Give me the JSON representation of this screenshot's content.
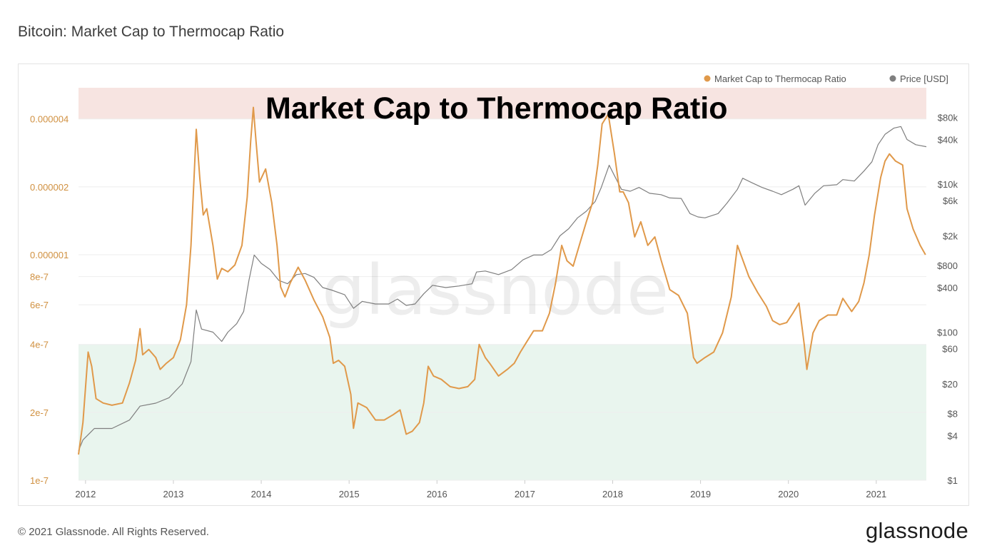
{
  "page_title": "Bitcoin: Market Cap to Thermocap Ratio",
  "overlay_title": "Market Cap to Thermocap Ratio",
  "watermark": "glassnode",
  "footer": {
    "copyright": "© 2021 Glassnode. All Rights Reserved.",
    "logo": "glassnode"
  },
  "colors": {
    "ratio": "#e0994a",
    "price": "#7f7f7f",
    "red_band": "#f7e4e1",
    "green_band": "#e9f5ee",
    "axis_left": "#d09040",
    "axis_right": "#555555"
  },
  "chart_data": {
    "type": "line",
    "title": "Market Cap to Thermocap Ratio",
    "legend": {
      "placement": "top-right",
      "entries": [
        "Market Cap to Thermocap Ratio",
        "Price [USD]"
      ]
    },
    "x_ticks": [
      "2012",
      "2013",
      "2014",
      "2015",
      "2016",
      "2017",
      "2018",
      "2019",
      "2020",
      "2021"
    ],
    "x_range": [
      2011.92,
      2021.57
    ],
    "y_left": {
      "scale": "log",
      "range": [
        1e-07,
        5.5e-06
      ],
      "ticks": [
        {
          "value": 4e-06,
          "label": "0.000004"
        },
        {
          "value": 2e-06,
          "label": "0.000002"
        },
        {
          "value": 1e-06,
          "label": "0.000001"
        },
        {
          "value": 8e-07,
          "label": "8e-7"
        },
        {
          "value": 6e-07,
          "label": "6e-7"
        },
        {
          "value": 4e-07,
          "label": "4e-7"
        },
        {
          "value": 2e-07,
          "label": "2e-7"
        },
        {
          "value": 1e-07,
          "label": "1e-7"
        }
      ]
    },
    "y_right": {
      "scale": "log",
      "range": [
        1,
        200000
      ],
      "ticks": [
        {
          "value": 80000,
          "label": "$80k"
        },
        {
          "value": 40000,
          "label": "$40k"
        },
        {
          "value": 10000,
          "label": "$10k"
        },
        {
          "value": 6000,
          "label": "$6k"
        },
        {
          "value": 2000,
          "label": "$2k"
        },
        {
          "value": 800,
          "label": "$800"
        },
        {
          "value": 400,
          "label": "$400"
        },
        {
          "value": 100,
          "label": "$100"
        },
        {
          "value": 60,
          "label": "$60"
        },
        {
          "value": 20,
          "label": "$20"
        },
        {
          "value": 8,
          "label": "$8"
        },
        {
          "value": 4,
          "label": "$4"
        },
        {
          "value": 1,
          "label": "$1"
        }
      ]
    },
    "bands": [
      {
        "name": "",
        "from": 4e-06,
        "to": 5.5e-06
      },
      {
        "name": "",
        "from": 1e-07,
        "to": 4e-07
      }
    ],
    "series": [
      {
        "name": "Market Cap to Thermocap Ratio",
        "axis": "left",
        "points": [
          [
            2011.92,
            1.3e-07
          ],
          [
            2011.97,
            1.8e-07
          ],
          [
            2012.03,
            3.7e-07
          ],
          [
            2012.07,
            3.2e-07
          ],
          [
            2012.12,
            2.3e-07
          ],
          [
            2012.2,
            2.2e-07
          ],
          [
            2012.3,
            2.15e-07
          ],
          [
            2012.42,
            2.2e-07
          ],
          [
            2012.5,
            2.7e-07
          ],
          [
            2012.57,
            3.4e-07
          ],
          [
            2012.62,
            4.7e-07
          ],
          [
            2012.65,
            3.6e-07
          ],
          [
            2012.72,
            3.8e-07
          ],
          [
            2012.8,
            3.5e-07
          ],
          [
            2012.85,
            3.1e-07
          ],
          [
            2012.92,
            3.3e-07
          ],
          [
            2013.0,
            3.5e-07
          ],
          [
            2013.08,
            4.2e-07
          ],
          [
            2013.15,
            6e-07
          ],
          [
            2013.2,
            1.1e-06
          ],
          [
            2013.26,
            3.6e-06
          ],
          [
            2013.3,
            2.2e-06
          ],
          [
            2013.34,
            1.5e-06
          ],
          [
            2013.38,
            1.6e-06
          ],
          [
            2013.45,
            1.1e-06
          ],
          [
            2013.5,
            7.8e-07
          ],
          [
            2013.55,
            8.7e-07
          ],
          [
            2013.62,
            8.4e-07
          ],
          [
            2013.7,
            9e-07
          ],
          [
            2013.78,
            1.1e-06
          ],
          [
            2013.84,
            1.8e-06
          ],
          [
            2013.88,
            3.2e-06
          ],
          [
            2013.91,
            4.5e-06
          ],
          [
            2013.94,
            3.2e-06
          ],
          [
            2013.98,
            2.1e-06
          ],
          [
            2014.05,
            2.4e-06
          ],
          [
            2014.12,
            1.7e-06
          ],
          [
            2014.18,
            1.1e-06
          ],
          [
            2014.22,
            7.2e-07
          ],
          [
            2014.27,
            6.5e-07
          ],
          [
            2014.33,
            7.5e-07
          ],
          [
            2014.42,
            8.8e-07
          ],
          [
            2014.5,
            7.7e-07
          ],
          [
            2014.6,
            6.3e-07
          ],
          [
            2014.7,
            5.3e-07
          ],
          [
            2014.78,
            4.3e-07
          ],
          [
            2014.82,
            3.3e-07
          ],
          [
            2014.88,
            3.4e-07
          ],
          [
            2014.95,
            3.2e-07
          ],
          [
            2015.02,
            2.4e-07
          ],
          [
            2015.05,
            1.7e-07
          ],
          [
            2015.1,
            2.2e-07
          ],
          [
            2015.2,
            2.1e-07
          ],
          [
            2015.3,
            1.85e-07
          ],
          [
            2015.4,
            1.85e-07
          ],
          [
            2015.5,
            1.95e-07
          ],
          [
            2015.58,
            2.05e-07
          ],
          [
            2015.65,
            1.6e-07
          ],
          [
            2015.72,
            1.65e-07
          ],
          [
            2015.8,
            1.8e-07
          ],
          [
            2015.85,
            2.2e-07
          ],
          [
            2015.9,
            3.2e-07
          ],
          [
            2015.96,
            2.9e-07
          ],
          [
            2016.05,
            2.8e-07
          ],
          [
            2016.15,
            2.6e-07
          ],
          [
            2016.25,
            2.55e-07
          ],
          [
            2016.35,
            2.6e-07
          ],
          [
            2016.43,
            2.8e-07
          ],
          [
            2016.48,
            4e-07
          ],
          [
            2016.55,
            3.5e-07
          ],
          [
            2016.6,
            3.3e-07
          ],
          [
            2016.7,
            2.9e-07
          ],
          [
            2016.8,
            3.1e-07
          ],
          [
            2016.88,
            3.3e-07
          ],
          [
            2016.95,
            3.7e-07
          ],
          [
            2017.02,
            4.1e-07
          ],
          [
            2017.1,
            4.6e-07
          ],
          [
            2017.2,
            4.6e-07
          ],
          [
            2017.28,
            5.5e-07
          ],
          [
            2017.35,
            7.5e-07
          ],
          [
            2017.42,
            1.1e-06
          ],
          [
            2017.48,
            9.4e-07
          ],
          [
            2017.55,
            8.9e-07
          ],
          [
            2017.62,
            1.1e-06
          ],
          [
            2017.7,
            1.4e-06
          ],
          [
            2017.77,
            1.7e-06
          ],
          [
            2017.83,
            2.5e-06
          ],
          [
            2017.88,
            3.8e-06
          ],
          [
            2017.95,
            4.2e-06
          ],
          [
            2018.02,
            2.8e-06
          ],
          [
            2018.08,
            1.9e-06
          ],
          [
            2018.12,
            1.9e-06
          ],
          [
            2018.18,
            1.7e-06
          ],
          [
            2018.25,
            1.2e-06
          ],
          [
            2018.32,
            1.4e-06
          ],
          [
            2018.4,
            1.1e-06
          ],
          [
            2018.48,
            1.2e-06
          ],
          [
            2018.55,
            9.5e-07
          ],
          [
            2018.65,
            7e-07
          ],
          [
            2018.75,
            6.6e-07
          ],
          [
            2018.85,
            5.5e-07
          ],
          [
            2018.92,
            3.5e-07
          ],
          [
            2018.96,
            3.3e-07
          ],
          [
            2019.05,
            3.5e-07
          ],
          [
            2019.15,
            3.7e-07
          ],
          [
            2019.25,
            4.5e-07
          ],
          [
            2019.35,
            6.5e-07
          ],
          [
            2019.42,
            1.1e-06
          ],
          [
            2019.48,
            9.5e-07
          ],
          [
            2019.55,
            8e-07
          ],
          [
            2019.65,
            6.8e-07
          ],
          [
            2019.75,
            5.9e-07
          ],
          [
            2019.82,
            5.1e-07
          ],
          [
            2019.9,
            4.9e-07
          ],
          [
            2019.98,
            5e-07
          ],
          [
            2020.05,
            5.5e-07
          ],
          [
            2020.12,
            6.1e-07
          ],
          [
            2020.18,
            4e-07
          ],
          [
            2020.21,
            3.1e-07
          ],
          [
            2020.28,
            4.5e-07
          ],
          [
            2020.35,
            5.1e-07
          ],
          [
            2020.45,
            5.4e-07
          ],
          [
            2020.55,
            5.4e-07
          ],
          [
            2020.62,
            6.4e-07
          ],
          [
            2020.72,
            5.6e-07
          ],
          [
            2020.8,
            6.2e-07
          ],
          [
            2020.86,
            7.5e-07
          ],
          [
            2020.92,
            1e-06
          ],
          [
            2020.98,
            1.5e-06
          ],
          [
            2021.05,
            2.2e-06
          ],
          [
            2021.1,
            2.6e-06
          ],
          [
            2021.15,
            2.8e-06
          ],
          [
            2021.22,
            2.6e-06
          ],
          [
            2021.3,
            2.5e-06
          ],
          [
            2021.35,
            1.6e-06
          ],
          [
            2021.42,
            1.3e-06
          ],
          [
            2021.5,
            1.1e-06
          ],
          [
            2021.56,
            1e-06
          ]
        ]
      },
      {
        "name": "Price [USD]",
        "axis": "right",
        "points": [
          [
            2011.92,
            2.5
          ],
          [
            2011.97,
            3.5
          ],
          [
            2012.1,
            5
          ],
          [
            2012.3,
            5
          ],
          [
            2012.5,
            6.5
          ],
          [
            2012.62,
            10
          ],
          [
            2012.8,
            11
          ],
          [
            2012.95,
            13
          ],
          [
            2013.1,
            20
          ],
          [
            2013.2,
            40
          ],
          [
            2013.26,
            200
          ],
          [
            2013.32,
            110
          ],
          [
            2013.45,
            100
          ],
          [
            2013.55,
            75
          ],
          [
            2013.62,
            100
          ],
          [
            2013.72,
            130
          ],
          [
            2013.8,
            190
          ],
          [
            2013.86,
            500
          ],
          [
            2013.92,
            1100
          ],
          [
            2014.0,
            850
          ],
          [
            2014.1,
            700
          ],
          [
            2014.2,
            500
          ],
          [
            2014.3,
            450
          ],
          [
            2014.4,
            600
          ],
          [
            2014.5,
            620
          ],
          [
            2014.6,
            550
          ],
          [
            2014.7,
            400
          ],
          [
            2014.8,
            370
          ],
          [
            2014.95,
            320
          ],
          [
            2015.05,
            210
          ],
          [
            2015.15,
            260
          ],
          [
            2015.3,
            240
          ],
          [
            2015.45,
            240
          ],
          [
            2015.55,
            280
          ],
          [
            2015.65,
            230
          ],
          [
            2015.75,
            240
          ],
          [
            2015.85,
            330
          ],
          [
            2015.95,
            430
          ],
          [
            2016.1,
            400
          ],
          [
            2016.25,
            420
          ],
          [
            2016.4,
            450
          ],
          [
            2016.45,
            650
          ],
          [
            2016.55,
            670
          ],
          [
            2016.7,
            600
          ],
          [
            2016.85,
            700
          ],
          [
            2016.98,
            950
          ],
          [
            2017.1,
            1100
          ],
          [
            2017.2,
            1100
          ],
          [
            2017.3,
            1300
          ],
          [
            2017.4,
            2000
          ],
          [
            2017.5,
            2500
          ],
          [
            2017.6,
            3500
          ],
          [
            2017.7,
            4300
          ],
          [
            2017.8,
            5800
          ],
          [
            2017.87,
            9000
          ],
          [
            2017.96,
            18000
          ],
          [
            2018.02,
            13000
          ],
          [
            2018.1,
            8500
          ],
          [
            2018.2,
            8000
          ],
          [
            2018.3,
            9000
          ],
          [
            2018.42,
            7500
          ],
          [
            2018.55,
            7200
          ],
          [
            2018.65,
            6500
          ],
          [
            2018.78,
            6400
          ],
          [
            2018.88,
            4000
          ],
          [
            2018.97,
            3600
          ],
          [
            2019.05,
            3500
          ],
          [
            2019.2,
            4000
          ],
          [
            2019.3,
            5500
          ],
          [
            2019.42,
            8500
          ],
          [
            2019.48,
            12000
          ],
          [
            2019.58,
            10500
          ],
          [
            2019.7,
            9000
          ],
          [
            2019.82,
            8000
          ],
          [
            2019.92,
            7200
          ],
          [
            2020.05,
            8500
          ],
          [
            2020.12,
            9500
          ],
          [
            2020.19,
            5200
          ],
          [
            2020.3,
            7500
          ],
          [
            2020.4,
            9500
          ],
          [
            2020.55,
            9800
          ],
          [
            2020.62,
            11500
          ],
          [
            2020.75,
            11000
          ],
          [
            2020.86,
            15000
          ],
          [
            2020.95,
            20000
          ],
          [
            2021.02,
            34000
          ],
          [
            2021.1,
            47000
          ],
          [
            2021.2,
            57000
          ],
          [
            2021.28,
            60000
          ],
          [
            2021.35,
            40000
          ],
          [
            2021.45,
            34000
          ],
          [
            2021.57,
            32000
          ]
        ]
      }
    ]
  }
}
